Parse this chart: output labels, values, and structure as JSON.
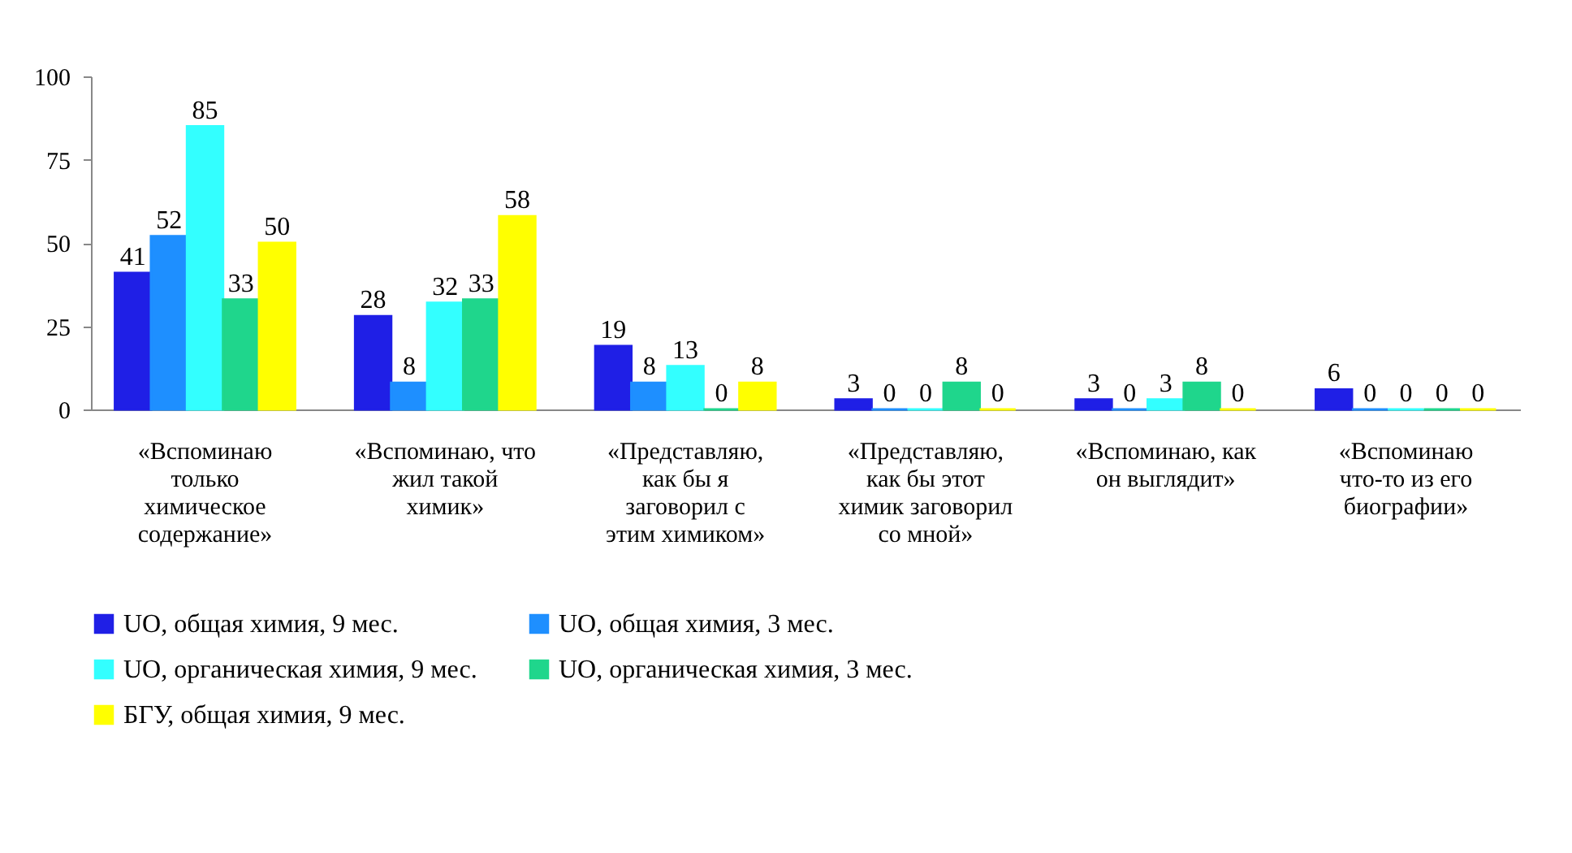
{
  "chart_data": {
    "type": "bar",
    "categories": [
      "«Вспоминаю только химическое содержание»",
      "«Вспоминаю, что жил такой химик»",
      "«Представляю, как бы я заговорил с этим химиком»",
      "«Представляю, как бы этот химик заговорил со мной»",
      "«Вспоминаю, как он выглядит»",
      "«Вспоминаю что-то из его биографии»"
    ],
    "series": [
      {
        "name": "UO, общая химия, 9 мес.",
        "color": "#1f1fe6",
        "values": [
          41,
          28,
          19,
          3,
          3,
          6
        ]
      },
      {
        "name": "UO, общая химия, 3 мес.",
        "color": "#1e8fff",
        "values": [
          52,
          8,
          8,
          0,
          0,
          0
        ]
      },
      {
        "name": "UO, органическая химия, 9 мес.",
        "color": "#33ffff",
        "values": [
          85,
          32,
          13,
          0,
          3,
          0
        ]
      },
      {
        "name": "UO, органическая химия, 3 мес.",
        "color": "#1fd68c",
        "values": [
          33,
          33,
          0,
          8,
          8,
          0
        ]
      },
      {
        "name": "БГУ, общая химия, 9 мес.",
        "color": "#ffff00",
        "values": [
          50,
          58,
          8,
          0,
          0,
          0
        ]
      }
    ],
    "ylim": [
      0,
      100
    ],
    "yticks": [
      0,
      25,
      50,
      75,
      100
    ],
    "grid": false,
    "legend": "bottom",
    "data_labels": true
  }
}
